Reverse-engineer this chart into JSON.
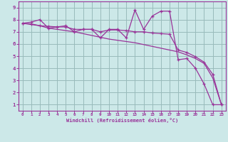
{
  "xlabel": "Windchill (Refroidissement éolien,°C)",
  "bg_color": "#cce8e8",
  "line_color": "#993399",
  "grid_color": "#99bbbb",
  "x_data": [
    0,
    1,
    2,
    3,
    4,
    5,
    6,
    7,
    8,
    9,
    10,
    11,
    12,
    13,
    14,
    15,
    16,
    17,
    18,
    19,
    20,
    21,
    22,
    23
  ],
  "y_line1": [
    7.7,
    7.8,
    8.0,
    7.3,
    7.4,
    7.5,
    7.0,
    7.2,
    7.2,
    6.5,
    7.2,
    7.2,
    6.5,
    8.8,
    7.2,
    8.3,
    8.7,
    8.7,
    4.7,
    4.8,
    4.0,
    2.7,
    1.0,
    1.0
  ],
  "y_line2": [
    7.7,
    7.65,
    7.5,
    7.45,
    7.4,
    7.4,
    7.2,
    7.2,
    7.2,
    7.0,
    7.15,
    7.15,
    7.1,
    7.0,
    7.0,
    6.9,
    6.85,
    6.8,
    5.5,
    5.3,
    4.95,
    4.5,
    3.5,
    1.0
  ],
  "y_line3": [
    7.7,
    7.6,
    7.5,
    7.3,
    7.2,
    7.1,
    7.0,
    6.85,
    6.7,
    6.55,
    6.4,
    6.3,
    6.2,
    6.1,
    5.95,
    5.8,
    5.65,
    5.5,
    5.35,
    5.1,
    4.8,
    4.4,
    3.2,
    1.0
  ],
  "xlim": [
    -0.5,
    23.5
  ],
  "ylim": [
    0.5,
    9.5
  ],
  "xticks": [
    0,
    1,
    2,
    3,
    4,
    5,
    6,
    7,
    8,
    9,
    10,
    11,
    12,
    13,
    14,
    15,
    16,
    17,
    18,
    19,
    20,
    21,
    22,
    23
  ],
  "yticks": [
    1,
    2,
    3,
    4,
    5,
    6,
    7,
    8,
    9
  ]
}
